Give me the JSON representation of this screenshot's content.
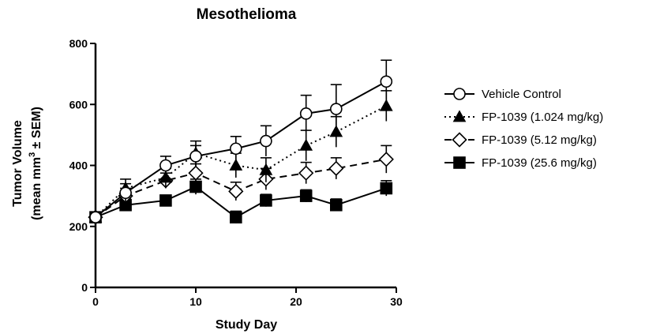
{
  "chart_data": {
    "type": "line",
    "title": "Mesothelioma",
    "xlabel": "Study Day",
    "ylabel_line1": "Tumor Volume",
    "ylabel_line2_pre": "(mean mm",
    "ylabel_sup": "3",
    "ylabel_line2_post": " ± SEM)",
    "xlim": [
      0,
      30
    ],
    "ylim": [
      0,
      800
    ],
    "xticks": [
      0,
      10,
      20,
      30
    ],
    "yticks": [
      0,
      200,
      400,
      600,
      800
    ],
    "x": [
      0,
      3,
      7,
      10,
      14,
      17,
      21,
      24,
      29
    ],
    "series": [
      {
        "name": "Vehicle Control",
        "marker": "circle-open",
        "line_style": "solid",
        "values": [
          230,
          310,
          400,
          430,
          455,
          480,
          570,
          585,
          675
        ],
        "errors": [
          10,
          30,
          30,
          35,
          40,
          50,
          60,
          80,
          70
        ]
      },
      {
        "name": "FP-1039 (1.024 mg/kg)",
        "marker": "triangle-filled",
        "line_style": "dotted",
        "values": [
          230,
          325,
          360,
          440,
          400,
          385,
          465,
          510,
          595
        ],
        "errors": [
          10,
          30,
          30,
          40,
          40,
          40,
          50,
          50,
          50
        ]
      },
      {
        "name": "FP-1039 (5.12 mg/kg)",
        "marker": "diamond-open",
        "line_style": "dashed",
        "values": [
          230,
          300,
          350,
          375,
          315,
          355,
          375,
          390,
          420
        ],
        "errors": [
          10,
          25,
          25,
          30,
          30,
          35,
          35,
          35,
          45
        ]
      },
      {
        "name": "FP-1039 (25.6 mg/kg)",
        "marker": "square-filled",
        "line_style": "solid",
        "values": [
          230,
          270,
          285,
          330,
          230,
          285,
          300,
          270,
          325
        ],
        "errors": [
          10,
          20,
          15,
          25,
          20,
          20,
          20,
          20,
          25
        ]
      }
    ],
    "legend_position": "right"
  }
}
